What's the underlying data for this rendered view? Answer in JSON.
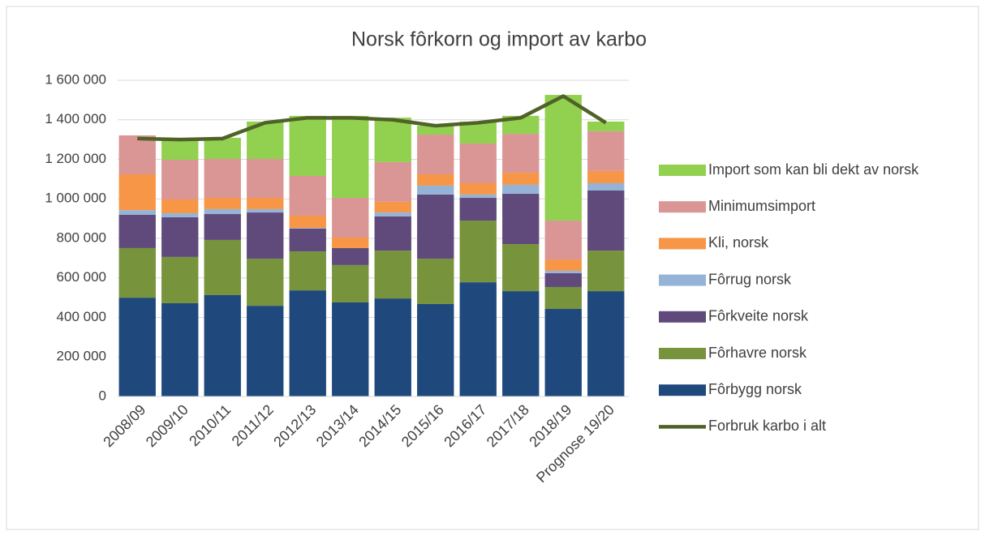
{
  "chart_data": {
    "type": "bar",
    "stacked": true,
    "title": "Norsk fôrkorn og import av karbo",
    "categories": [
      "2008/09",
      "2009/10",
      "2010/11",
      "2011/12",
      "2012/13",
      "2013/14",
      "2014/15",
      "2015/16",
      "2016/17",
      "2017/18",
      "2018/19",
      "Prognose 19/20"
    ],
    "ylim": [
      0,
      1600000
    ],
    "yticks": [
      0,
      {
        "value": 200000,
        "label": "200 000"
      },
      {
        "value": 400000,
        "label": "400 000"
      },
      {
        "value": 600000,
        "label": "600 000"
      },
      {
        "value": 800000,
        "label": "800 000"
      },
      {
        "value": 1000000,
        "label": "1 000 000"
      },
      {
        "value": 1200000,
        "label": "1 200 000"
      },
      {
        "value": 1400000,
        "label": "1 400 000"
      },
      {
        "value": 1600000,
        "label": "1 600 000"
      }
    ],
    "grid": true,
    "legend": "right",
    "series": [
      {
        "name": "Fôrbygg norsk",
        "color": "#1f497d",
        "values": [
          500000,
          472000,
          513000,
          459000,
          537000,
          476000,
          496000,
          468000,
          578000,
          533000,
          443000,
          533000
        ]
      },
      {
        "name": "Fôrhavre norsk",
        "color": "#77933c",
        "values": [
          251000,
          234000,
          279000,
          238000,
          197000,
          189000,
          242000,
          229000,
          312000,
          238000,
          111000,
          205000
        ]
      },
      {
        "name": "Fôrkveite norsk",
        "color": "#604a7b",
        "values": [
          168000,
          201000,
          131000,
          234000,
          116000,
          86000,
          173000,
          325000,
          115000,
          255000,
          70000,
          304000
        ]
      },
      {
        "name": "Fôrrug norsk",
        "color": "#95b3d7",
        "values": [
          24000,
          20000,
          25000,
          17000,
          3000,
          0,
          20000,
          45000,
          17000,
          45000,
          12000,
          37000
        ]
      },
      {
        "name": "Kli, norsk",
        "color": "#f79646",
        "values": [
          181000,
          70000,
          57000,
          57000,
          62000,
          53000,
          54000,
          57000,
          57000,
          61000,
          57000,
          62000
        ]
      },
      {
        "name": "Minimumsimport",
        "color": "#d99694",
        "values": [
          197000,
          201000,
          197000,
          197000,
          201000,
          201000,
          201000,
          201000,
          201000,
          197000,
          197000,
          201000
        ]
      },
      {
        "name": "Import som kan bli dekt av norsk",
        "color": "#92d050",
        "values": [
          0,
          111000,
          107000,
          189000,
          304000,
          415000,
          225000,
          45000,
          111000,
          91000,
          636000,
          49000
        ]
      },
      {
        "name": "Forbruk karbo i alt",
        "color": "#4f6228",
        "type": "line",
        "values": [
          1305000,
          1300000,
          1305000,
          1385000,
          1410000,
          1410000,
          1400000,
          1370000,
          1385000,
          1410000,
          1520000,
          1385000
        ]
      }
    ]
  }
}
